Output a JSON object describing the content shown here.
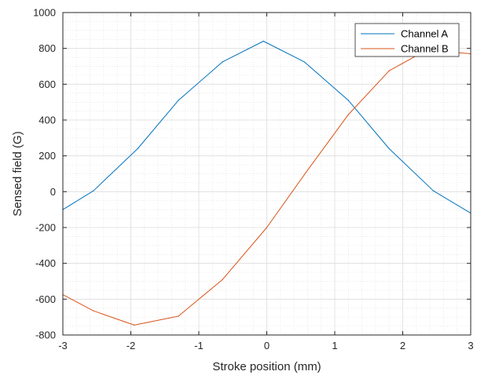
{
  "chart_data": {
    "type": "line",
    "title": "",
    "xlabel": "Stroke position (mm)",
    "ylabel": "Sensed field (G)",
    "xlim": [
      -3,
      3
    ],
    "ylim": [
      -800,
      1000
    ],
    "xticks": [
      -3,
      -2,
      -1,
      0,
      1,
      2,
      3
    ],
    "yticks": [
      -800,
      -600,
      -400,
      -200,
      0,
      200,
      400,
      600,
      800,
      1000
    ],
    "grid": "major and minor",
    "legend_position": "top-right",
    "series": [
      {
        "name": "Channel A",
        "color": "#0072BD",
        "x": [
          -3.0,
          -2.55,
          -1.9,
          -1.3,
          -0.65,
          -0.05,
          0.55,
          1.2,
          1.8,
          2.45,
          3.0
        ],
        "y": [
          -100,
          5,
          240,
          510,
          725,
          840,
          725,
          510,
          240,
          5,
          -120
        ]
      },
      {
        "name": "Channel B",
        "color": "#D95319",
        "x": [
          -3.0,
          -2.55,
          -1.95,
          -1.3,
          -0.65,
          0.0,
          0.6,
          1.2,
          1.8,
          2.35,
          3.0
        ],
        "y": [
          -575,
          -665,
          -745,
          -695,
          -490,
          -200,
          120,
          430,
          675,
          790,
          770
        ]
      }
    ]
  }
}
